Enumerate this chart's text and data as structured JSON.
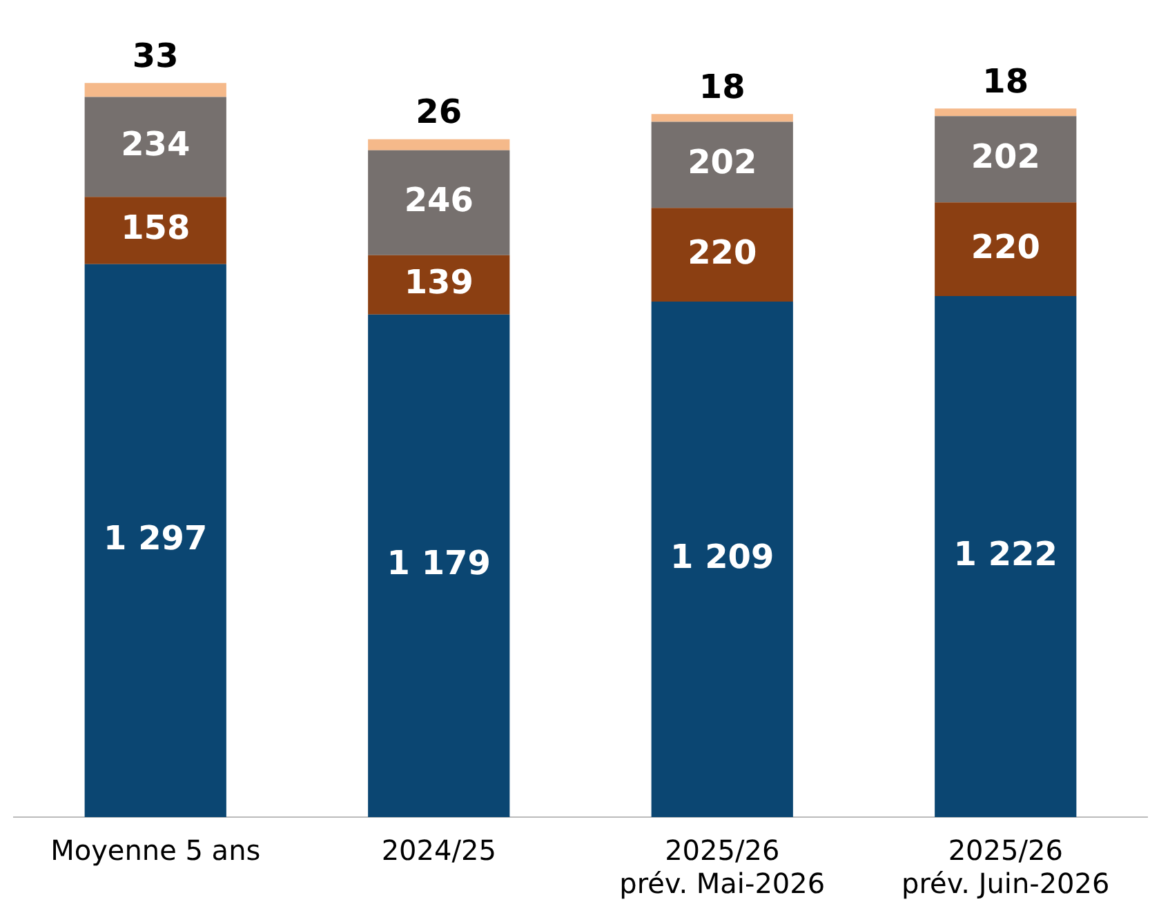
{
  "chart_data": {
    "type": "bar",
    "stacked": true,
    "categories": [
      "Moyenne 5 ans",
      "2024/25",
      "2025/26\nprév. Mai-2026",
      "2025/26\nprév. Juin-2026"
    ],
    "tick_labels": "x",
    "grid": false,
    "legend": false,
    "series": [
      {
        "color": "#0b4672",
        "values": [
          1297,
          1179,
          1209,
          1222
        ],
        "value_labels": [
          "1 297",
          "1 179",
          "1 209",
          "1 222"
        ]
      },
      {
        "color": "#8b3f12",
        "values": [
          158,
          139,
          220,
          220
        ],
        "value_labels": [
          "158",
          "139",
          "220",
          "220"
        ]
      },
      {
        "color": "#76706e",
        "values": [
          234,
          246,
          202,
          202
        ],
        "value_labels": [
          "234",
          "246",
          "202",
          "202"
        ]
      },
      {
        "color": "#f5b98a",
        "values": [
          33,
          26,
          18,
          18
        ],
        "value_labels": [
          "33",
          "26",
          "18",
          "18"
        ]
      }
    ]
  }
}
